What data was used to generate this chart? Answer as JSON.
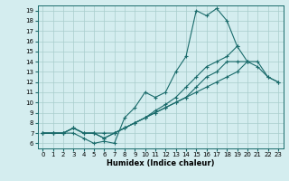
{
  "xlabel": "Humidex (Indice chaleur)",
  "xlim": [
    -0.5,
    23.5
  ],
  "ylim": [
    5.5,
    19.5
  ],
  "xticks": [
    0,
    1,
    2,
    3,
    4,
    5,
    6,
    7,
    8,
    9,
    10,
    11,
    12,
    13,
    14,
    15,
    16,
    17,
    18,
    19,
    20,
    21,
    22,
    23
  ],
  "yticks": [
    6,
    7,
    8,
    9,
    10,
    11,
    12,
    13,
    14,
    15,
    16,
    17,
    18,
    19
  ],
  "bg_color": "#d4edef",
  "line_color": "#1a6b6b",
  "grid_color": "#a8cccc",
  "lines": [
    {
      "x": [
        0,
        1,
        2,
        3,
        4,
        5,
        6,
        7,
        8,
        9,
        10,
        11,
        12,
        13,
        14,
        15,
        16,
        17,
        18,
        19
      ],
      "y": [
        7,
        7,
        7,
        7,
        6.5,
        6,
        6.2,
        6,
        8.5,
        9.5,
        11,
        10.5,
        11,
        13,
        14.5,
        19,
        18.5,
        19.2,
        18,
        15.5
      ]
    },
    {
      "x": [
        0,
        1,
        2,
        3,
        4,
        5,
        6,
        7,
        8,
        9,
        10,
        11,
        12,
        13,
        14,
        15,
        16,
        17,
        18,
        19,
        20,
        21,
        22,
        23
      ],
      "y": [
        7,
        7,
        7,
        7.5,
        7,
        7,
        6.5,
        7,
        7.5,
        8,
        8.5,
        9,
        9.5,
        10,
        10.5,
        11,
        11.5,
        12,
        12.5,
        13,
        14,
        14,
        12.5,
        12
      ]
    },
    {
      "x": [
        0,
        1,
        2,
        3,
        4,
        5,
        6,
        7,
        8,
        9,
        10,
        11,
        12,
        13,
        14,
        15,
        16,
        17,
        18,
        19,
        20
      ],
      "y": [
        7,
        7,
        7,
        7.5,
        7,
        7,
        6.5,
        7,
        7.5,
        8,
        8.5,
        9.2,
        9.8,
        10.5,
        11.5,
        12.5,
        13.5,
        14,
        14.5,
        15.5,
        14
      ]
    },
    {
      "x": [
        0,
        1,
        2,
        3,
        4,
        5,
        6,
        7,
        8,
        9,
        10,
        11,
        12,
        13,
        14,
        15,
        16,
        17,
        18,
        19,
        20,
        21,
        22,
        23
      ],
      "y": [
        7,
        7,
        7,
        7.5,
        7,
        7,
        7,
        7,
        7.5,
        8,
        8.5,
        9,
        9.5,
        10,
        10.5,
        11.5,
        12.5,
        13,
        14,
        14,
        14,
        13.5,
        12.5,
        12
      ]
    }
  ]
}
